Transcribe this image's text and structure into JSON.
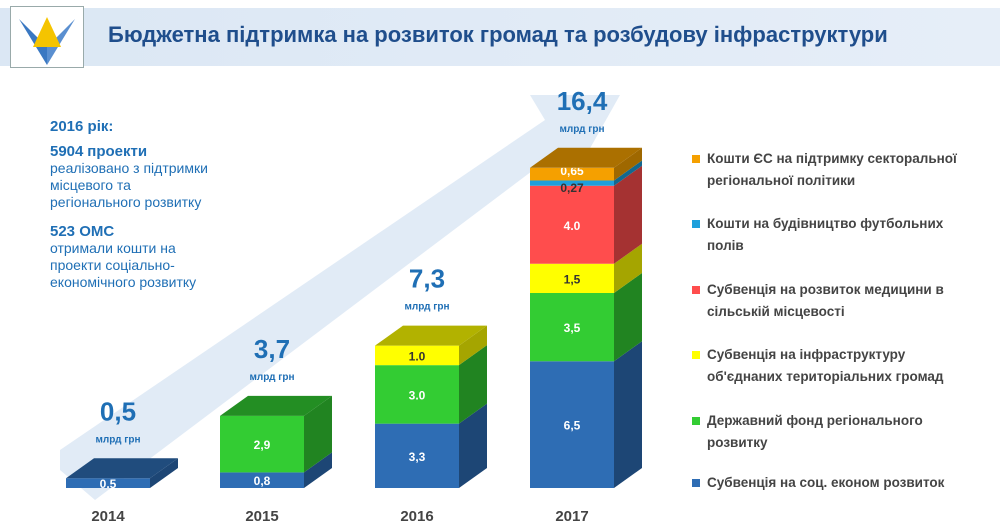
{
  "header": {
    "title": "Бюджетна підтримка на розвиток громад та розбудову інфраструктури"
  },
  "info": {
    "year": "2016 рік:",
    "projects_count": "5904",
    "projects_word": "проекти",
    "projects_desc": [
      "реалізовано з підтримки",
      "місцевого та",
      "регіонального розвитку"
    ],
    "oms_count": "523 ОМС",
    "oms_desc": [
      "отримали кошти на",
      "проекти соціально-",
      "економічного розвитку"
    ]
  },
  "chart_data": {
    "type": "bar",
    "stacked": true,
    "categories": [
      "2014",
      "2015",
      "2016",
      "2017"
    ],
    "totals": [
      "0,5",
      "3,7",
      "7,3",
      "16,4"
    ],
    "total_values": [
      0.5,
      3.7,
      7.3,
      16.4
    ],
    "unit": "млрд грн",
    "series": [
      {
        "name": "Субвенція на соц. економ розвиток",
        "color": "#2e6db4",
        "values": [
          0.5,
          0.8,
          3.3,
          6.5
        ],
        "labels": [
          "0.5",
          "0,8",
          "3,3",
          "6,5"
        ]
      },
      {
        "name": "Державний фонд регіонального розвитку",
        "color": "#33cc33",
        "values": [
          0,
          2.9,
          3.0,
          3.5
        ],
        "labels": [
          "",
          "2,9",
          "3.0",
          "3,5"
        ]
      },
      {
        "name": "Субвенція на інфраструктуру об'єднаних територіальних громад",
        "color": "#ffff00",
        "values": [
          0,
          0,
          1.0,
          1.5
        ],
        "labels": [
          "",
          "",
          "1.0",
          "1,5"
        ]
      },
      {
        "name": "Субвенція на розвиток медицини в сільській місцевості",
        "color": "#ff4d4d",
        "values": [
          0,
          0,
          0,
          4.0
        ],
        "labels": [
          "",
          "",
          "",
          "4.0"
        ]
      },
      {
        "name": "Кошти на будівництво футбольних полів",
        "color": "#1ea0dc",
        "values": [
          0,
          0,
          0,
          0.27
        ],
        "labels": [
          "",
          "",
          "",
          "0,27"
        ]
      },
      {
        "name": "Кошти ЄС на підтримку секторальної регіональної політики",
        "color": "#f5a000",
        "values": [
          0,
          0,
          0,
          0.65
        ],
        "labels": [
          "",
          "",
          "",
          "0,65"
        ]
      }
    ],
    "legend_placement": "right",
    "legend_lines": [
      [
        "Кошти ЄС на підтримку секторальної",
        "регіональної політики"
      ],
      [
        "Кошти на будівництво футбольних",
        "полів"
      ],
      [
        "Субвенція на розвиток медицини в",
        "сільській місцевості"
      ],
      [
        "Субвенція на інфраструктуру",
        "об'єднаних територіальних громад"
      ],
      [
        "Державний фонд регіонального",
        "розвитку"
      ],
      [
        "Субвенція на соц. економ розвиток"
      ]
    ]
  }
}
